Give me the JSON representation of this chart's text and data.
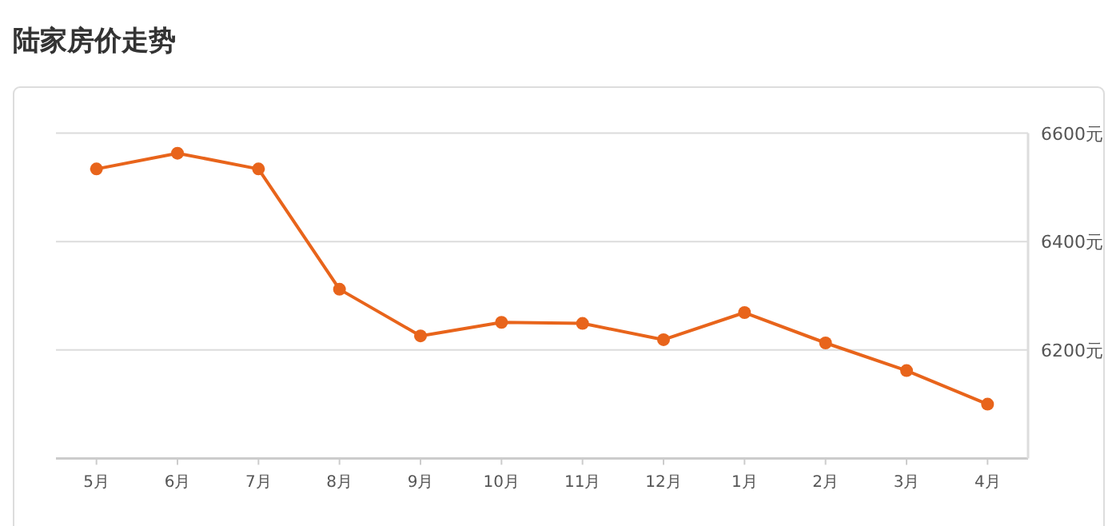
{
  "chart_data": {
    "type": "line",
    "title": "陆家房价走势",
    "categories": [
      "5月",
      "6月",
      "7月",
      "8月",
      "9月",
      "10月",
      "11月",
      "12月",
      "1月",
      "2月",
      "3月",
      "4月"
    ],
    "values": [
      6534,
      6563,
      6534,
      6312,
      6226,
      6251,
      6249,
      6219,
      6269,
      6213,
      6162,
      6100
    ],
    "color": "#e8641b",
    "marker": "circle",
    "grid": "y",
    "ylim": [
      6000,
      6600
    ],
    "yticks": [
      {
        "value": 6000,
        "label": null
      },
      {
        "value": 6200,
        "label": "6200元"
      },
      {
        "value": 6400,
        "label": "6400元"
      },
      {
        "value": 6600,
        "label": "6600元"
      }
    ]
  }
}
